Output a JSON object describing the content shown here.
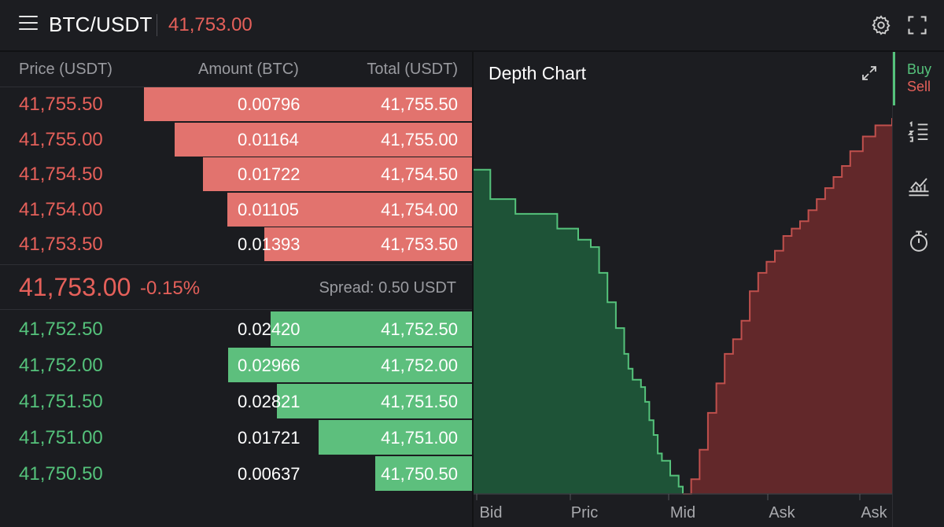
{
  "header": {
    "pair": "BTC/USDT",
    "last_price": "41,753.00"
  },
  "orderbook": {
    "columns": [
      "Price (USDT)",
      "Amount (BTC)",
      "Total (USDT)"
    ],
    "asks": [
      {
        "price": "41,755.50",
        "amount": "0.00796",
        "total": "41,755.50",
        "depth": 0.695
      },
      {
        "price": "41,755.00",
        "amount": "0.01164",
        "total": "41,755.00",
        "depth": 0.63
      },
      {
        "price": "41,754.50",
        "amount": "0.01722",
        "total": "41,754.50",
        "depth": 0.57
      },
      {
        "price": "41,754.00",
        "amount": "0.01105",
        "total": "41,754.00",
        "depth": 0.518
      },
      {
        "price": "41,753.50",
        "amount": "0.01393",
        "total": "41,753.50",
        "depth": 0.44
      }
    ],
    "mid": {
      "price": "41,753.00",
      "change": "-0.15%",
      "spread": "Spread: 0.50 USDT"
    },
    "bids": [
      {
        "price": "41,752.50",
        "amount": "0.02420",
        "total": "41,752.50",
        "depth": 0.427
      },
      {
        "price": "41,752.00",
        "amount": "0.02966",
        "total": "41,752.00",
        "depth": 0.517
      },
      {
        "price": "41,751.50",
        "amount": "0.02821",
        "total": "41,751.50",
        "depth": 0.413
      },
      {
        "price": "41,751.00",
        "amount": "0.01721",
        "total": "41,751.00",
        "depth": 0.325
      },
      {
        "price": "41,750.50",
        "amount": "0.00637",
        "total": "41,750.50",
        "depth": 0.205
      }
    ]
  },
  "depth_chart": {
    "title": "Depth Chart",
    "x_labels": [
      "Bid",
      "Pric",
      "Mid",
      "Ask",
      "Ask"
    ]
  },
  "chart_data": {
    "type": "area",
    "title": "Depth Chart",
    "x_ticks": [
      "Bid",
      "Pric",
      "Mid",
      "Ask",
      "Ask"
    ],
    "series": [
      {
        "name": "",
        "color": "#55c27b",
        "x": [
          0,
          0.04,
          0.1,
          0.2,
          0.25,
          0.28,
          0.3,
          0.32,
          0.34,
          0.36,
          0.37,
          0.38,
          0.4,
          0.41,
          0.42,
          0.43,
          0.44,
          0.45,
          0.47,
          0.49,
          0.5
        ],
        "y": [
          0.88,
          0.8,
          0.76,
          0.72,
          0.69,
          0.67,
          0.6,
          0.52,
          0.45,
          0.38,
          0.34,
          0.31,
          0.29,
          0.25,
          0.2,
          0.16,
          0.11,
          0.09,
          0.05,
          0.02,
          0
        ]
      },
      {
        "name": "",
        "color": "#c0504d",
        "x": [
          0.5,
          0.52,
          0.54,
          0.56,
          0.58,
          0.6,
          0.62,
          0.64,
          0.66,
          0.68,
          0.7,
          0.72,
          0.74,
          0.76,
          0.78,
          0.8,
          0.82,
          0.84,
          0.86,
          0.88,
          0.9,
          0.93,
          0.96,
          1.0
        ],
        "y": [
          0,
          0.04,
          0.12,
          0.22,
          0.3,
          0.38,
          0.42,
          0.47,
          0.55,
          0.6,
          0.63,
          0.66,
          0.7,
          0.72,
          0.74,
          0.77,
          0.8,
          0.83,
          0.86,
          0.89,
          0.93,
          0.97,
          1.0,
          1.02
        ]
      }
    ],
    "ylim": [
      0,
      1.05
    ],
    "grid": false,
    "legend": "none"
  },
  "rail": {
    "buy_label": "Buy",
    "sell_label": "Sell"
  },
  "icons": [
    "menu-icon",
    "gear-icon",
    "fullscreen-icon",
    "expand-chart-icon",
    "order-list-icon",
    "chart-indicator-icon",
    "stopwatch-icon"
  ],
  "colors": {
    "ask": "#e5605a",
    "bid": "#55c27b",
    "ask_bar": "#e2736e",
    "bid_bar": "#5dbf7d",
    "background": "#1b1c20"
  }
}
